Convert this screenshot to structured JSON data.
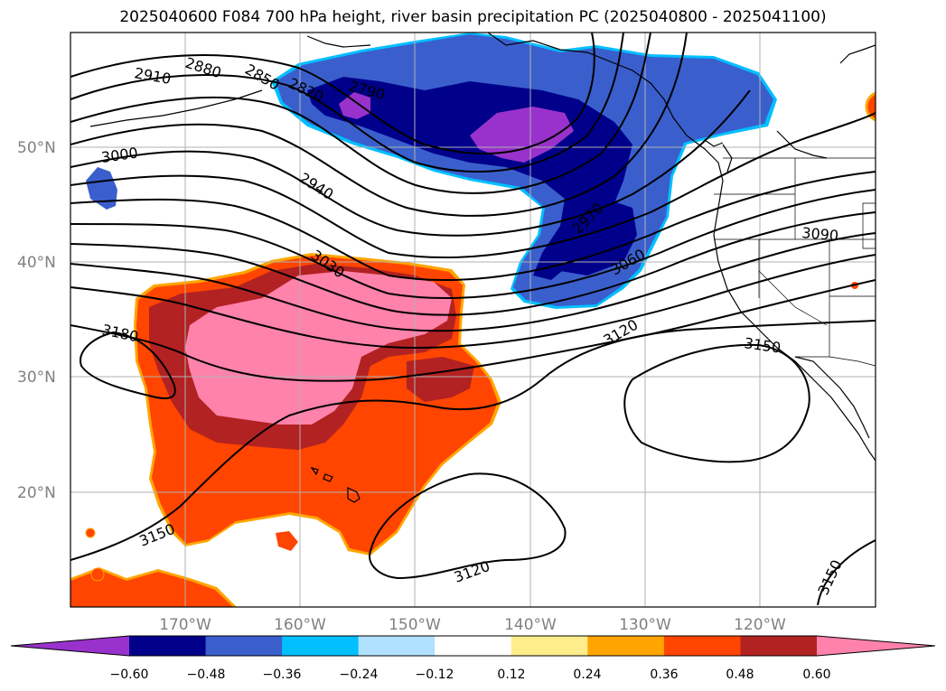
{
  "title": "2025040600 F084 700 hPa height, river basin precipitation PC (2025040800 - 2025041100)",
  "latitude_labels": [
    "50°N",
    "40°N",
    "30°N",
    "20°N"
  ],
  "longitude_labels": [
    "170°W",
    "160°W",
    "150°W",
    "140°W",
    "130°W",
    "120°W"
  ],
  "contour_labels": [
    "2910",
    "2880",
    "2850",
    "2820",
    "2790",
    "3000",
    "2940",
    "3030",
    "2970",
    "3060",
    "3090",
    "3180",
    "3120",
    "3150",
    "3150",
    "3120",
    "3150"
  ],
  "colorbar": {
    "ticks": [
      "−0.60",
      "−0.48",
      "−0.36",
      "−0.24",
      "−0.12",
      "0.12",
      "0.24",
      "0.36",
      "0.48",
      "0.60"
    ],
    "colors": [
      "#9932cc",
      "#00008b",
      "#3a5fcd",
      "#00bfff",
      "#b0e2ff",
      "#ffffff",
      "#ffec8b",
      "#ffa500",
      "#ff4500",
      "#b22222",
      "#ff82ab"
    ],
    "extend": "both"
  }
}
